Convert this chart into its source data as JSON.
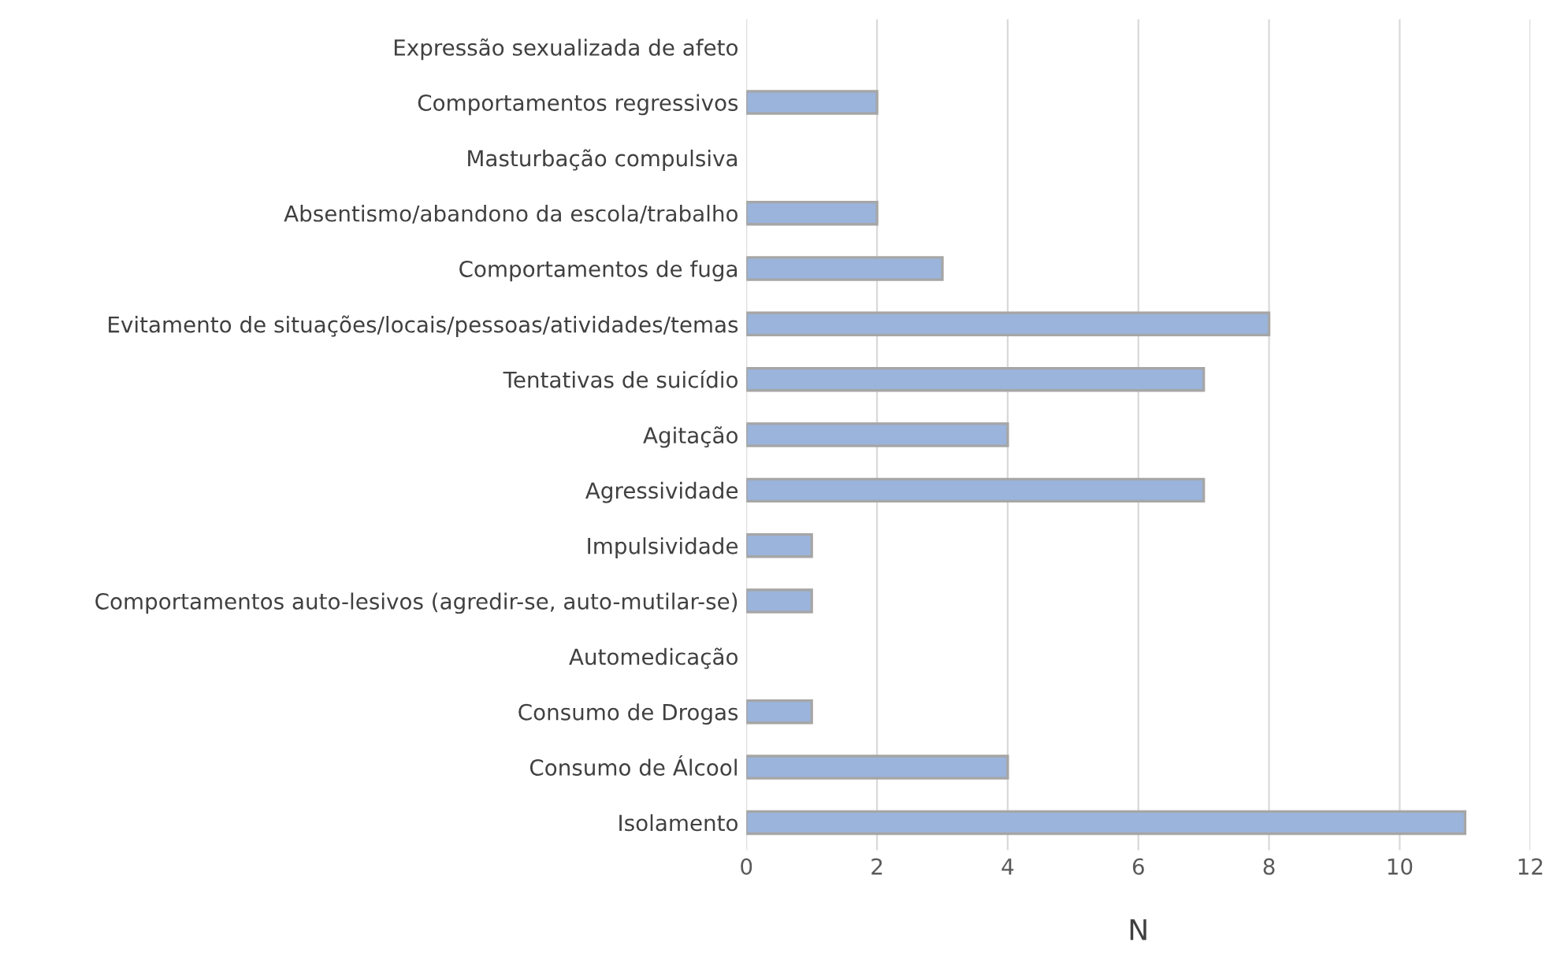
{
  "chart_data": {
    "type": "bar",
    "orientation": "horizontal",
    "xlabel": "N",
    "categories": [
      "Expressão sexualizada de afeto",
      "Comportamentos regressivos",
      "Masturbação compulsiva",
      "Absentismo/abandono da escola/trabalho",
      "Comportamentos de fuga",
      "Evitamento de situações/locais/pessoas/atividades/temas",
      "Tentativas de suicídio",
      "Agitação",
      "Agressividade",
      "Impulsividade",
      "Comportamentos auto-lesivos (agredir-se, auto-mutilar-se)",
      "Automedicação",
      "Consumo de Drogas",
      "Consumo de Álcool",
      "Isolamento"
    ],
    "values": [
      0,
      2,
      0,
      2,
      3,
      8,
      7,
      4,
      7,
      1,
      1,
      0,
      1,
      4,
      11
    ],
    "color": "#9ab4dc",
    "xlim": [
      0,
      12
    ],
    "xticks": [
      0,
      2,
      4,
      6,
      8,
      10,
      12
    ],
    "grid": "x",
    "legend": false
  }
}
